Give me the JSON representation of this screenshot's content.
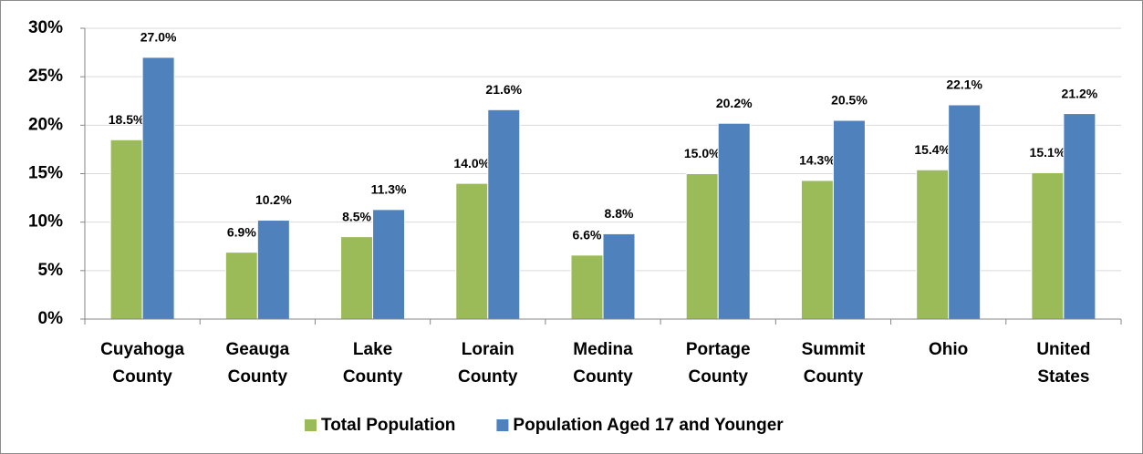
{
  "chart_data": {
    "type": "bar",
    "categories": [
      "Cuyahoga County",
      "Geauga County",
      "Lake County",
      "Lorain County",
      "Medina County",
      "Portage County",
      "Summit County",
      "Ohio",
      "United States"
    ],
    "series": [
      {
        "name": "Total Population",
        "color": "#9bbb59",
        "values": [
          18.5,
          6.9,
          8.5,
          14.0,
          6.6,
          15.0,
          14.3,
          15.4,
          15.1
        ],
        "value_labels": [
          "18.5%",
          "6.9%",
          "8.5%",
          "14.0%",
          "6.6%",
          "15.0%",
          "14.3%",
          "15.4%",
          "15.1%"
        ]
      },
      {
        "name": "Population Aged 17 and Younger",
        "color": "#4f81bd",
        "values": [
          27.0,
          10.2,
          11.3,
          21.6,
          8.8,
          20.2,
          20.5,
          22.1,
          21.2
        ],
        "value_labels": [
          "27.0%",
          "10.2%",
          "11.3%",
          "21.6%",
          "8.8%",
          "20.2%",
          "20.5%",
          "22.1%",
          "21.2%"
        ]
      }
    ],
    "ylim": [
      0,
      30
    ],
    "yticks": [
      {
        "value": 0,
        "label": "0%"
      },
      {
        "value": 5,
        "label": "5%"
      },
      {
        "value": 10,
        "label": "10%"
      },
      {
        "value": 15,
        "label": "15%"
      },
      {
        "value": 20,
        "label": "20%"
      },
      {
        "value": 25,
        "label": "25%"
      },
      {
        "value": 30,
        "label": "30%"
      }
    ],
    "grid": true,
    "legend": "bottom"
  }
}
